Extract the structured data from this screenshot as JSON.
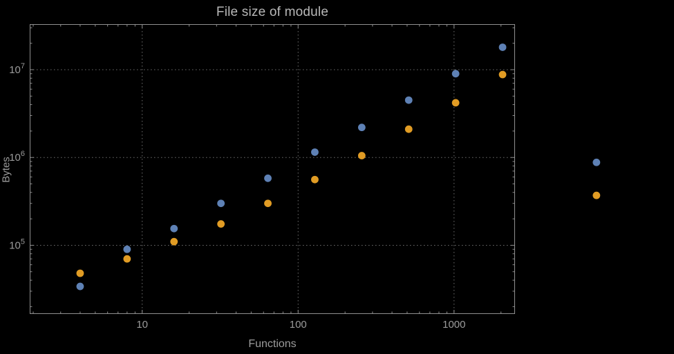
{
  "page": {
    "background": "#000000"
  },
  "chart_data": {
    "type": "scatter",
    "title": "File size of module",
    "xlabel": "Functions",
    "ylabel": "Bytes",
    "x_scale": "log10",
    "y_scale": "log10",
    "xlim": [
      1.9,
      2460
    ],
    "ylim": [
      16500,
      33000000
    ],
    "grid": "dotted lines at decade ticks",
    "legend": "none",
    "x_ticks": [
      10,
      100,
      1000
    ],
    "x_tick_labels": [
      "10",
      "100",
      "1000"
    ],
    "y_ticks": [
      100000,
      1000000,
      10000000
    ],
    "y_tick_labels": [
      "10^5",
      "10^6",
      "10^7"
    ],
    "y_tick_exponents": [
      5,
      6,
      7
    ],
    "x": [
      4,
      8,
      16,
      32,
      64,
      128,
      256,
      512,
      1024,
      2048,
      8192
    ],
    "series": [
      {
        "name": "series-1-blue",
        "color": "#5e81b5",
        "values": [
          34000,
          90000,
          155000,
          300000,
          580000,
          1150000,
          2200000,
          4500000,
          9000000,
          18000000,
          880000
        ]
      },
      {
        "name": "series-2-orange",
        "color": "#e19c24",
        "values": [
          48000,
          70000,
          110000,
          175000,
          300000,
          560000,
          1050000,
          2100000,
          4200000,
          8800000,
          370000
        ]
      }
    ],
    "colors": {
      "grid": "#707070",
      "frame": "#909090",
      "tick_text": "#9c9c9c",
      "axis_label_text": "#9c9c9c",
      "title_text": "#b8b8b8"
    }
  }
}
